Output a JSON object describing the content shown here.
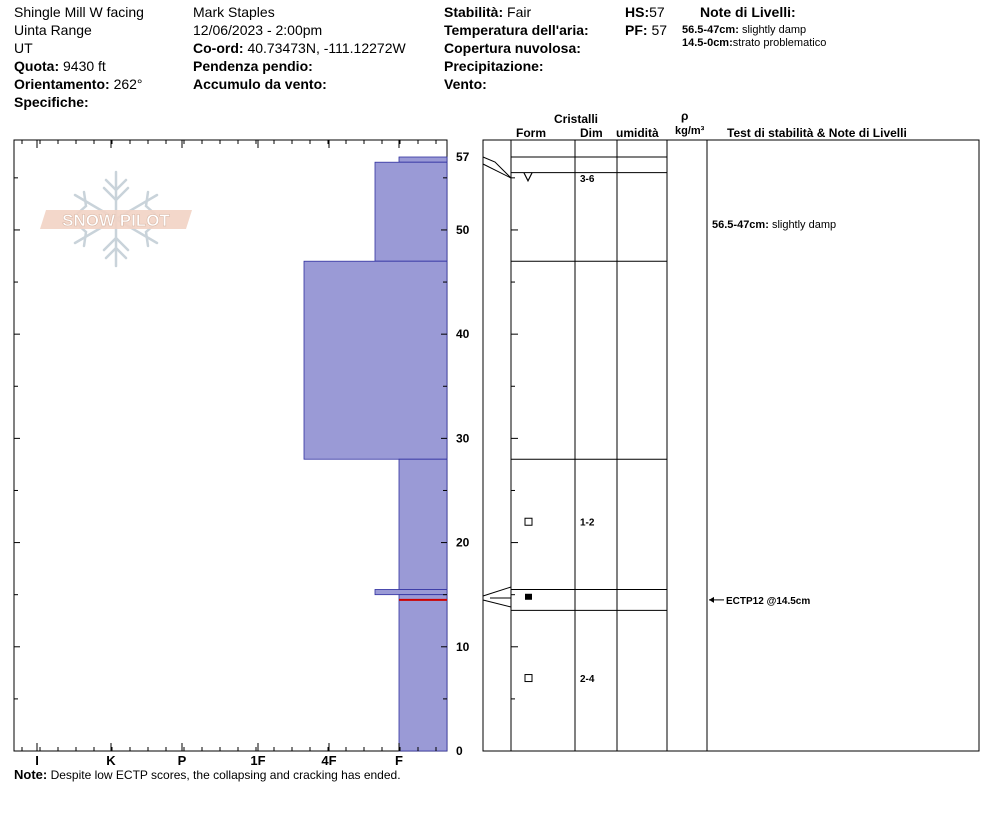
{
  "header": {
    "location": "Shingle Mill W facing",
    "range": "Uinta Range",
    "state": "UT",
    "elevation_label": "Quota:",
    "elevation_value": "9430 ft",
    "aspect_label": "Orientamento:",
    "aspect_value": "262°",
    "specifics_label": "Specifiche:",
    "observer": "Mark Staples",
    "datetime": "12/06/2023 - 2:00pm",
    "coord_label": "Co-ord:",
    "coord_value": "40.73473N, -111.12272W",
    "slope_label": "Pendenza pendio:",
    "wind_loading_label": "Accumulo da vento:",
    "stability_label": "Stabilità:",
    "stability_value": "Fair",
    "air_temp_label": "Temperatura dell'aria:",
    "cloud_label": "Copertura nuvolosa:",
    "precip_label": "Precipitazione:",
    "wind_label": "Vento:",
    "hs_label": "HS:",
    "hs_value": "57",
    "pf_label": "PF:",
    "pf_value": "57",
    "layer_notes_title": "Note di Livelli:",
    "layer_notes": [
      {
        "range": "56.5-47cm:",
        "text": "slightly damp"
      },
      {
        "range": "14.5-0cm:",
        "text": "strato problematico"
      }
    ]
  },
  "table_headers": {
    "crystals": "Cristalli",
    "form": "Form",
    "dim": "Dim",
    "moisture": "umidità",
    "rho": "ρ",
    "density_unit": "kg/m³",
    "tests": "Test di stabilità & Note di Livelli"
  },
  "logo_text": "SNOW PILOT",
  "note_label": "Note:",
  "note_text": "Despite low ECTP scores, the collapsing and cracking has ended.",
  "chart_data": {
    "type": "bar",
    "orientation": "horizontal-step",
    "xlabel": "",
    "ylabel": "",
    "x_categories": [
      "I",
      "K",
      "P",
      "1F",
      "4F",
      "F"
    ],
    "y_ticks": [
      0,
      10,
      20,
      30,
      40,
      50,
      57
    ],
    "ylim": [
      0,
      57
    ],
    "hand_hardness_layers": [
      {
        "top": 57,
        "bottom": 56.5,
        "hardness": "F"
      },
      {
        "top": 56.5,
        "bottom": 47,
        "hardness": "F+"
      },
      {
        "top": 47,
        "bottom": 28,
        "hardness": "4F-"
      },
      {
        "top": 28,
        "bottom": 15.5,
        "hardness": "F"
      },
      {
        "top": 15.5,
        "bottom": 15,
        "hardness": "F+"
      },
      {
        "top": 15,
        "bottom": 0,
        "hardness": "F"
      }
    ],
    "problem_layer_depth": 14.5,
    "crystal_rows": [
      {
        "depth": 55,
        "form_symbol": "V",
        "form": "precipitation particles",
        "size": "3-6"
      },
      {
        "depth": 22,
        "form_symbol": "□",
        "form": "faceted",
        "size": "1-2"
      },
      {
        "depth": 14.8,
        "form_symbol": "■",
        "form": "rounded facets",
        "size": ""
      },
      {
        "depth": 7,
        "form_symbol": "□",
        "form": "faceted",
        "size": "2-4"
      }
    ],
    "layer_boundaries": [
      57,
      55.5,
      47,
      28,
      15.5,
      13.5
    ],
    "tests": [
      {
        "depth": 14.5,
        "label": "ECTP12 @14.5cm"
      }
    ],
    "profile_notes": [
      {
        "depth": 50,
        "range": "56.5-47cm:",
        "text": "slightly damp"
      }
    ],
    "colors": {
      "hardness_fill": "#9a9ad6",
      "hardness_stroke": "#3030a0",
      "problem_layer": "#cc0000"
    }
  }
}
